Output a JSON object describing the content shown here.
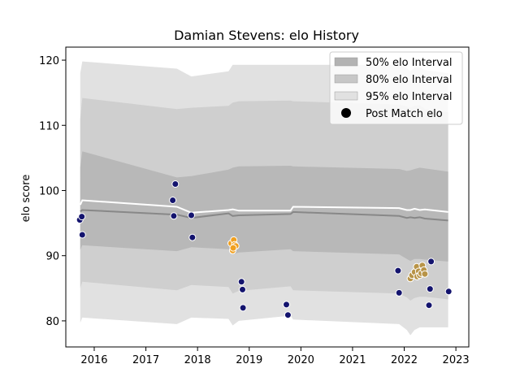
{
  "chart_data": {
    "type": "scatter",
    "title": "Damian Stevens: elo History",
    "xlabel": "",
    "ylabel": "elo score",
    "xlim": [
      2015.45,
      2023.25
    ],
    "ylim": [
      76,
      122
    ],
    "xticks": [
      2016,
      2017,
      2018,
      2019,
      2020,
      2021,
      2022,
      2023
    ],
    "yticks": [
      80,
      90,
      100,
      110,
      120
    ],
    "grid": false,
    "legend": {
      "placement": "top-right",
      "entries": [
        {
          "label": "50% elo Interval",
          "color": "#b3b3b3",
          "kind": "patch"
        },
        {
          "label": "80% elo Interval",
          "color": "#c7c7c7",
          "kind": "patch"
        },
        {
          "label": "95% elo Interval",
          "color": "#e1e1e1",
          "kind": "patch"
        },
        {
          "label": "Post Match elo",
          "color": "#000000",
          "kind": "marker"
        }
      ]
    },
    "colors": {
      "band95": "#e1e1e1",
      "band80": "#cfcfcf",
      "band50": "#b8b8b8",
      "mean_line": "#ffffff",
      "median_line": "#888888",
      "navy_points": "#14146e",
      "orange_points": "#f0a020",
      "tan_points": "#b89448"
    },
    "bands": {
      "x": [
        2015.73,
        2015.77,
        2017.6,
        2017.88,
        2018.6,
        2018.68,
        2018.8,
        2019.8,
        2019.85,
        2021.9,
        2022.05,
        2022.12,
        2022.2,
        2022.3,
        2022.4,
        2022.85
      ],
      "p95_low": [
        79.7,
        80.5,
        79.5,
        80.5,
        80.3,
        79.3,
        80.0,
        80.8,
        80.2,
        79.5,
        78.6,
        77.8,
        78.6,
        79.0,
        79.0,
        79.0
      ],
      "p80_low": [
        85.0,
        86.0,
        84.7,
        85.5,
        85.2,
        84.2,
        84.6,
        85.3,
        84.7,
        84.2,
        83.6,
        83.1,
        83.5,
        83.7,
        83.7,
        83.3
      ],
      "p50_low": [
        90.9,
        91.6,
        90.7,
        91.3,
        91.0,
        90.2,
        90.5,
        91.0,
        90.7,
        90.2,
        89.5,
        89.2,
        89.5,
        89.5,
        89.4,
        89.1
      ],
      "p50_high": [
        103.6,
        106.0,
        102.0,
        102.2,
        103.2,
        103.5,
        103.7,
        103.8,
        103.7,
        103.3,
        103.0,
        103.1,
        103.3,
        103.5,
        103.4,
        102.9
      ],
      "p80_high": [
        111.0,
        114.2,
        112.5,
        112.7,
        113.0,
        113.5,
        113.7,
        113.8,
        113.7,
        113.2,
        112.9,
        112.7,
        113.0,
        113.1,
        112.5,
        112.0
      ],
      "p95_high": [
        118.0,
        119.8,
        118.7,
        117.5,
        118.3,
        119.3,
        119.3,
        119.3,
        119.3,
        119.3,
        118.8,
        118.3,
        118.9,
        118.9,
        118.5,
        118.0
      ]
    },
    "series": [
      {
        "kind": "line",
        "color": "#ffffff",
        "x": [
          2015.73,
          2015.77,
          2017.6,
          2017.88,
          2018.6,
          2018.68,
          2018.8,
          2019.8,
          2019.85,
          2021.9,
          2022.05,
          2022.12,
          2022.2,
          2022.3,
          2022.4,
          2022.85
        ],
        "y": [
          97.8,
          98.5,
          97.5,
          96.6,
          97.0,
          97.1,
          96.9,
          96.9,
          97.5,
          97.3,
          97.0,
          97.0,
          97.2,
          97.0,
          97.1,
          96.7
        ]
      },
      {
        "kind": "line",
        "color": "#888888",
        "x": [
          2015.73,
          2015.77,
          2017.6,
          2017.88,
          2018.6,
          2018.68,
          2018.8,
          2019.8,
          2019.85,
          2021.9,
          2022.05,
          2022.12,
          2022.2,
          2022.3,
          2022.4,
          2022.85
        ],
        "y": [
          96.8,
          97.0,
          96.3,
          95.8,
          96.5,
          96.1,
          96.2,
          96.4,
          96.7,
          96.1,
          95.8,
          95.9,
          95.8,
          95.9,
          95.7,
          95.4
        ]
      },
      {
        "kind": "points",
        "color": "#14146e",
        "x": [
          2015.72,
          2015.76,
          2015.77,
          2017.52,
          2017.54,
          2017.57,
          2017.88,
          2017.9,
          2018.85,
          2018.87,
          2018.88,
          2019.72,
          2019.75,
          2021.88,
          2021.9,
          2022.48,
          2022.5,
          2022.52,
          2022.86
        ],
        "y": [
          95.5,
          96.0,
          93.2,
          98.5,
          96.1,
          101.0,
          96.2,
          92.8,
          86.0,
          84.8,
          82.0,
          82.5,
          80.9,
          87.7,
          84.3,
          82.4,
          84.9,
          89.1,
          84.5
        ]
      },
      {
        "kind": "points",
        "color": "#f0a020",
        "x": [
          2018.65,
          2018.7,
          2018.72,
          2018.68,
          2018.74,
          2018.69
        ],
        "y": [
          91.9,
          92.4,
          91.7,
          90.8,
          91.5,
          91.2
        ]
      },
      {
        "kind": "points",
        "color": "#b89448",
        "x": [
          2022.12,
          2022.15,
          2022.2,
          2022.24,
          2022.25,
          2022.28,
          2022.3,
          2022.33,
          2022.35,
          2022.38,
          2022.4
        ],
        "y": [
          86.5,
          87.0,
          87.5,
          88.3,
          86.8,
          87.6,
          87.0,
          87.3,
          88.5,
          87.8,
          87.2
        ]
      }
    ]
  }
}
